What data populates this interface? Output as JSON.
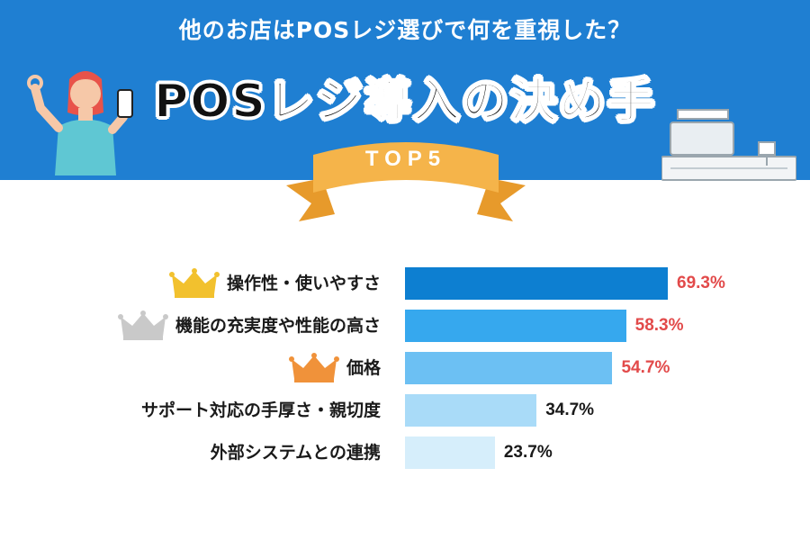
{
  "header": {
    "subtitle": "他のお店はPOSレジ選びで何を重視した？",
    "title": "POSレジ導入の決め手",
    "ribbon": "TOP5"
  },
  "colors": {
    "header_blue": "#1f7fd2",
    "ribbon_orange": "#f5b44a",
    "highlight_value": "#e24a4a",
    "normal_value": "#1a1a1a",
    "crown_gold": "#f2c12e",
    "crown_silver": "#c9c9c9",
    "crown_bronze": "#f0923a"
  },
  "chart_data": {
    "type": "bar",
    "orientation": "horizontal",
    "categories": [
      "操作性・使いやすさ",
      "機能の充実度や性能の高さ",
      "価格",
      "サポート対応の手厚さ・親切度",
      "外部システムとの連携"
    ],
    "values": [
      69.3,
      58.3,
      54.7,
      34.7,
      23.7
    ],
    "value_labels": [
      "69.3%",
      "58.3%",
      "54.7%",
      "34.7%",
      "23.7%"
    ],
    "bar_colors": [
      "#0d7fd1",
      "#36a8ee",
      "#6cc0f3",
      "#a9dbf8",
      "#d6eefb"
    ],
    "highlighted": [
      true,
      true,
      true,
      false,
      false
    ],
    "crowns": [
      "gold",
      "silver",
      "bronze",
      null,
      null
    ],
    "xlim": [
      0,
      100
    ],
    "title": "POSレジ導入の決め手",
    "xlabel": "",
    "ylabel": ""
  }
}
